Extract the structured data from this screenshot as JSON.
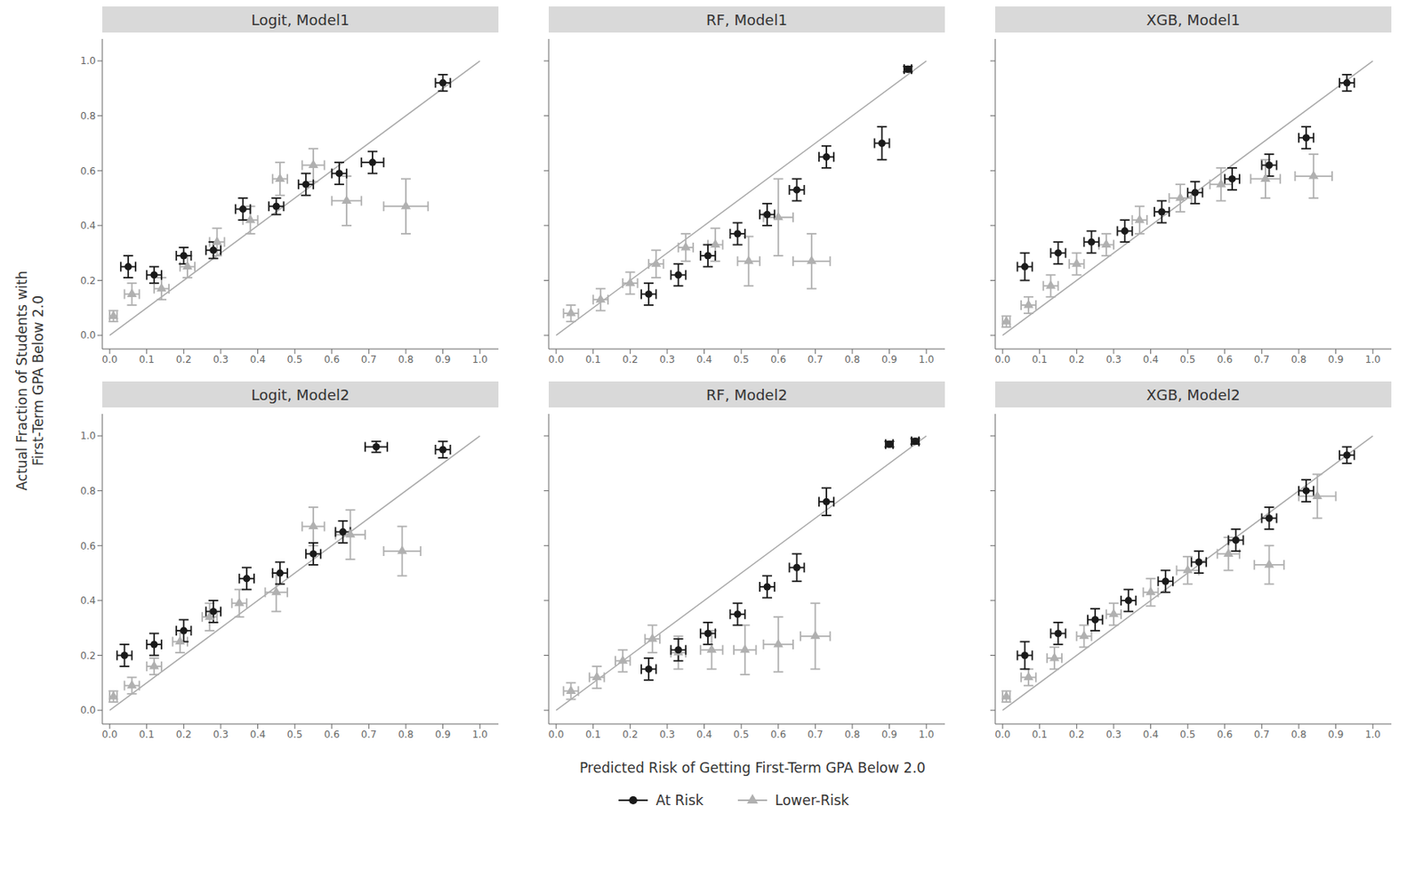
{
  "chart_data": [
    {
      "type": "scatter",
      "title": "Logit, Model1",
      "xlim": [
        -0.02,
        1.05
      ],
      "ylim": [
        -0.05,
        1.08
      ],
      "xticks": [
        {
          "value": 0.0,
          "label": "0.0"
        },
        0.1,
        0.2,
        0.3,
        0.4,
        0.5,
        0.6,
        0.7,
        0.8,
        0.9,
        {
          "value": 1.0,
          "label": "1.0"
        }
      ],
      "yticks": [
        {
          "value": 0.0,
          "label": "0.0"
        },
        0.2,
        0.4,
        0.6,
        0.8,
        {
          "value": 1.0,
          "label": "1.0"
        }
      ],
      "grid": false,
      "reference_line": {
        "x": [
          0,
          1
        ],
        "y": [
          0,
          1
        ],
        "color": "#aaaaaa"
      },
      "series": [
        {
          "name": "At Risk",
          "color": "#1a1a1a",
          "marker": "circle",
          "x": [
            0.05,
            0.12,
            0.2,
            0.28,
            0.36,
            0.45,
            0.53,
            0.62,
            0.71,
            0.9
          ],
          "values": [
            0.25,
            0.22,
            0.29,
            0.31,
            0.46,
            0.47,
            0.55,
            0.59,
            0.63,
            0.92
          ],
          "xerr": [
            0.02,
            0.02,
            0.02,
            0.02,
            0.02,
            0.02,
            0.02,
            0.02,
            0.03,
            0.02
          ],
          "yerr": [
            0.04,
            0.03,
            0.03,
            0.03,
            0.04,
            0.03,
            0.04,
            0.04,
            0.04,
            0.03
          ]
        },
        {
          "name": "Lower-Risk",
          "color": "#b0b0b0",
          "marker": "triangle",
          "x": [
            0.01,
            0.06,
            0.14,
            0.21,
            0.29,
            0.38,
            0.46,
            0.55,
            0.64,
            0.8
          ],
          "values": [
            0.07,
            0.15,
            0.17,
            0.25,
            0.34,
            0.42,
            0.57,
            0.62,
            0.49,
            0.47
          ],
          "xerr": [
            0.01,
            0.02,
            0.02,
            0.02,
            0.02,
            0.02,
            0.02,
            0.03,
            0.04,
            0.06
          ],
          "yerr": [
            0.02,
            0.04,
            0.04,
            0.04,
            0.05,
            0.05,
            0.06,
            0.06,
            0.09,
            0.1
          ]
        }
      ]
    },
    {
      "type": "scatter",
      "title": "RF, Model1",
      "xlim": [
        -0.02,
        1.05
      ],
      "ylim": [
        -0.05,
        1.08
      ],
      "xticks": [
        {
          "value": 0.0,
          "label": "0.0"
        },
        0.1,
        0.2,
        0.3,
        0.4,
        0.5,
        0.6,
        0.7,
        0.8,
        0.9,
        {
          "value": 1.0,
          "label": "1.0"
        }
      ],
      "yticks": [
        {
          "value": 0.0,
          "label": "0.0"
        },
        0.2,
        0.4,
        0.6,
        0.8,
        {
          "value": 1.0,
          "label": "1.0"
        }
      ],
      "grid": false,
      "tick_labels": "x",
      "reference_line": {
        "x": [
          0,
          1
        ],
        "y": [
          0,
          1
        ],
        "color": "#aaaaaa"
      },
      "series": [
        {
          "name": "At Risk",
          "color": "#1a1a1a",
          "marker": "circle",
          "x": [
            0.25,
            0.33,
            0.41,
            0.49,
            0.57,
            0.65,
            0.73,
            0.88,
            0.95
          ],
          "values": [
            0.15,
            0.22,
            0.29,
            0.37,
            0.44,
            0.53,
            0.65,
            0.7,
            0.97
          ],
          "xerr": [
            0.02,
            0.02,
            0.02,
            0.02,
            0.02,
            0.02,
            0.02,
            0.02,
            0.01
          ],
          "yerr": [
            0.04,
            0.04,
            0.04,
            0.04,
            0.04,
            0.04,
            0.04,
            0.06,
            0.01
          ]
        },
        {
          "name": "Lower-Risk",
          "color": "#b0b0b0",
          "marker": "triangle",
          "x": [
            0.04,
            0.12,
            0.2,
            0.27,
            0.35,
            0.43,
            0.52,
            0.6,
            0.69
          ],
          "values": [
            0.08,
            0.13,
            0.19,
            0.26,
            0.32,
            0.33,
            0.27,
            0.43,
            0.27
          ],
          "xerr": [
            0.02,
            0.02,
            0.02,
            0.02,
            0.02,
            0.02,
            0.03,
            0.04,
            0.05
          ],
          "yerr": [
            0.03,
            0.04,
            0.04,
            0.05,
            0.05,
            0.06,
            0.09,
            0.14,
            0.1
          ]
        }
      ]
    },
    {
      "type": "scatter",
      "title": "XGB, Model1",
      "xlim": [
        -0.02,
        1.05
      ],
      "ylim": [
        -0.05,
        1.08
      ],
      "xticks": [
        {
          "value": 0.0,
          "label": "0.0"
        },
        0.1,
        0.2,
        0.3,
        0.4,
        0.5,
        0.6,
        0.7,
        0.8,
        0.9,
        {
          "value": 1.0,
          "label": "1.0"
        }
      ],
      "yticks": [
        {
          "value": 0.0,
          "label": "0.0"
        },
        0.2,
        0.4,
        0.6,
        0.8,
        {
          "value": 1.0,
          "label": "1.0"
        }
      ],
      "grid": false,
      "tick_labels": "x",
      "reference_line": {
        "x": [
          0,
          1
        ],
        "y": [
          0,
          1
        ],
        "color": "#aaaaaa"
      },
      "series": [
        {
          "name": "At Risk",
          "color": "#1a1a1a",
          "marker": "circle",
          "x": [
            0.06,
            0.15,
            0.24,
            0.33,
            0.43,
            0.52,
            0.62,
            0.72,
            0.82,
            0.93
          ],
          "values": [
            0.25,
            0.3,
            0.34,
            0.38,
            0.45,
            0.52,
            0.57,
            0.62,
            0.72,
            0.92
          ],
          "xerr": [
            0.02,
            0.02,
            0.02,
            0.02,
            0.02,
            0.02,
            0.02,
            0.02,
            0.02,
            0.02
          ],
          "yerr": [
            0.05,
            0.04,
            0.04,
            0.04,
            0.04,
            0.04,
            0.04,
            0.04,
            0.04,
            0.03
          ]
        },
        {
          "name": "Lower-Risk",
          "color": "#b0b0b0",
          "marker": "triangle",
          "x": [
            0.01,
            0.07,
            0.13,
            0.2,
            0.28,
            0.37,
            0.48,
            0.59,
            0.71,
            0.84
          ],
          "values": [
            0.05,
            0.11,
            0.18,
            0.26,
            0.33,
            0.42,
            0.5,
            0.55,
            0.57,
            0.58
          ],
          "xerr": [
            0.01,
            0.02,
            0.02,
            0.02,
            0.02,
            0.02,
            0.03,
            0.03,
            0.04,
            0.05
          ],
          "yerr": [
            0.02,
            0.03,
            0.04,
            0.04,
            0.04,
            0.05,
            0.05,
            0.06,
            0.07,
            0.08
          ]
        }
      ]
    },
    {
      "type": "scatter",
      "title": "Logit, Model2",
      "xlim": [
        -0.02,
        1.05
      ],
      "ylim": [
        -0.05,
        1.08
      ],
      "xticks": [
        {
          "value": 0.0,
          "label": "0.0"
        },
        0.1,
        0.2,
        0.3,
        0.4,
        0.5,
        0.6,
        0.7,
        0.8,
        0.9,
        {
          "value": 1.0,
          "label": "1.0"
        }
      ],
      "yticks": [
        {
          "value": 0.0,
          "label": "0.0"
        },
        0.2,
        0.4,
        0.6,
        0.8,
        {
          "value": 1.0,
          "label": "1.0"
        }
      ],
      "grid": false,
      "reference_line": {
        "x": [
          0,
          1
        ],
        "y": [
          0,
          1
        ],
        "color": "#aaaaaa"
      },
      "series": [
        {
          "name": "At Risk",
          "color": "#1a1a1a",
          "marker": "circle",
          "x": [
            0.04,
            0.12,
            0.2,
            0.28,
            0.37,
            0.46,
            0.55,
            0.63,
            0.72,
            0.9
          ],
          "values": [
            0.2,
            0.24,
            0.29,
            0.36,
            0.48,
            0.5,
            0.57,
            0.65,
            0.96,
            0.95
          ],
          "xerr": [
            0.02,
            0.02,
            0.02,
            0.02,
            0.02,
            0.02,
            0.02,
            0.02,
            0.03,
            0.02
          ],
          "yerr": [
            0.04,
            0.04,
            0.04,
            0.04,
            0.04,
            0.04,
            0.04,
            0.04,
            0.02,
            0.03
          ]
        },
        {
          "name": "Lower-Risk",
          "color": "#b0b0b0",
          "marker": "triangle",
          "x": [
            0.01,
            0.06,
            0.12,
            0.19,
            0.27,
            0.35,
            0.45,
            0.55,
            0.65,
            0.79
          ],
          "values": [
            0.05,
            0.09,
            0.16,
            0.25,
            0.34,
            0.39,
            0.43,
            0.67,
            0.64,
            0.58
          ],
          "xerr": [
            0.01,
            0.02,
            0.02,
            0.02,
            0.02,
            0.02,
            0.03,
            0.03,
            0.04,
            0.05
          ],
          "yerr": [
            0.02,
            0.03,
            0.03,
            0.04,
            0.05,
            0.05,
            0.07,
            0.07,
            0.09,
            0.09
          ]
        }
      ]
    },
    {
      "type": "scatter",
      "title": "RF, Model2",
      "xlim": [
        -0.02,
        1.05
      ],
      "ylim": [
        -0.05,
        1.08
      ],
      "xticks": [
        {
          "value": 0.0,
          "label": "0.0"
        },
        0.1,
        0.2,
        0.3,
        0.4,
        0.5,
        0.6,
        0.7,
        0.8,
        0.9,
        {
          "value": 1.0,
          "label": "1.0"
        }
      ],
      "yticks": [
        {
          "value": 0.0,
          "label": "0.0"
        },
        0.2,
        0.4,
        0.6,
        0.8,
        {
          "value": 1.0,
          "label": "1.0"
        }
      ],
      "grid": false,
      "tick_labels": "x",
      "reference_line": {
        "x": [
          0,
          1
        ],
        "y": [
          0,
          1
        ],
        "color": "#aaaaaa"
      },
      "series": [
        {
          "name": "At Risk",
          "color": "#1a1a1a",
          "marker": "circle",
          "x": [
            0.25,
            0.33,
            0.41,
            0.49,
            0.57,
            0.65,
            0.73,
            0.9,
            0.97
          ],
          "values": [
            0.15,
            0.22,
            0.28,
            0.35,
            0.45,
            0.52,
            0.76,
            0.97,
            0.98
          ],
          "xerr": [
            0.02,
            0.02,
            0.02,
            0.02,
            0.02,
            0.02,
            0.02,
            0.01,
            0.01
          ],
          "yerr": [
            0.04,
            0.04,
            0.04,
            0.04,
            0.04,
            0.05,
            0.05,
            0.01,
            0.01
          ]
        },
        {
          "name": "Lower-Risk",
          "color": "#b0b0b0",
          "marker": "triangle",
          "x": [
            0.04,
            0.11,
            0.18,
            0.26,
            0.33,
            0.42,
            0.51,
            0.6,
            0.7
          ],
          "values": [
            0.07,
            0.12,
            0.18,
            0.26,
            0.21,
            0.22,
            0.22,
            0.24,
            0.27
          ],
          "xerr": [
            0.02,
            0.02,
            0.02,
            0.02,
            0.02,
            0.03,
            0.03,
            0.04,
            0.04
          ],
          "yerr": [
            0.03,
            0.04,
            0.04,
            0.05,
            0.06,
            0.07,
            0.09,
            0.1,
            0.12
          ]
        }
      ]
    },
    {
      "type": "scatter",
      "title": "XGB, Model2",
      "xlim": [
        -0.02,
        1.05
      ],
      "ylim": [
        -0.05,
        1.08
      ],
      "xticks": [
        {
          "value": 0.0,
          "label": "0.0"
        },
        0.1,
        0.2,
        0.3,
        0.4,
        0.5,
        0.6,
        0.7,
        0.8,
        0.9,
        {
          "value": 1.0,
          "label": "1.0"
        }
      ],
      "yticks": [
        {
          "value": 0.0,
          "label": "0.0"
        },
        0.2,
        0.4,
        0.6,
        0.8,
        {
          "value": 1.0,
          "label": "1.0"
        }
      ],
      "grid": false,
      "tick_labels": "x",
      "reference_line": {
        "x": [
          0,
          1
        ],
        "y": [
          0,
          1
        ],
        "color": "#aaaaaa"
      },
      "series": [
        {
          "name": "At Risk",
          "color": "#1a1a1a",
          "marker": "circle",
          "x": [
            0.06,
            0.15,
            0.25,
            0.34,
            0.44,
            0.53,
            0.63,
            0.72,
            0.82,
            0.93
          ],
          "values": [
            0.2,
            0.28,
            0.33,
            0.4,
            0.47,
            0.54,
            0.62,
            0.7,
            0.8,
            0.93
          ],
          "xerr": [
            0.02,
            0.02,
            0.02,
            0.02,
            0.02,
            0.02,
            0.02,
            0.02,
            0.02,
            0.02
          ],
          "yerr": [
            0.05,
            0.04,
            0.04,
            0.04,
            0.04,
            0.04,
            0.04,
            0.04,
            0.04,
            0.03
          ]
        },
        {
          "name": "Lower-Risk",
          "color": "#b0b0b0",
          "marker": "triangle",
          "x": [
            0.01,
            0.07,
            0.14,
            0.22,
            0.3,
            0.4,
            0.5,
            0.61,
            0.72,
            0.85
          ],
          "values": [
            0.05,
            0.12,
            0.19,
            0.27,
            0.35,
            0.43,
            0.51,
            0.57,
            0.53,
            0.78
          ],
          "xerr": [
            0.01,
            0.02,
            0.02,
            0.02,
            0.02,
            0.02,
            0.03,
            0.03,
            0.04,
            0.05
          ],
          "yerr": [
            0.02,
            0.03,
            0.04,
            0.04,
            0.04,
            0.05,
            0.05,
            0.06,
            0.07,
            0.08
          ]
        }
      ]
    }
  ],
  "xlabel": "Predicted Risk of Getting First-Term GPA Below 2.0",
  "ylabel": "Actual Fraction of Students with\nFirst-Term GPA Below 2.0",
  "legend": "bottom"
}
